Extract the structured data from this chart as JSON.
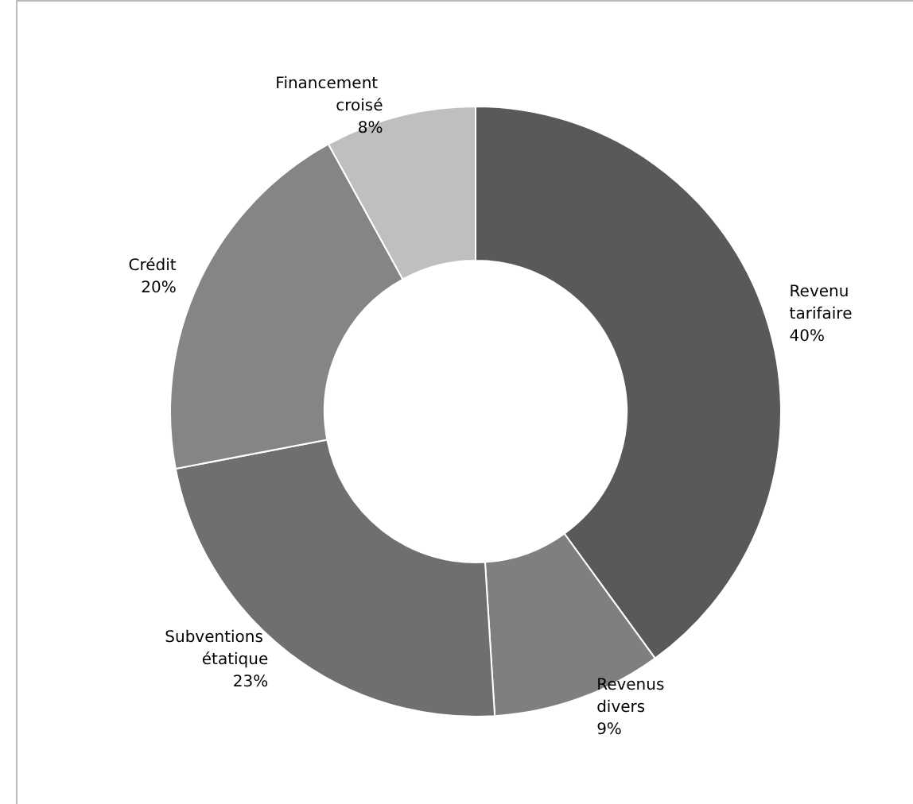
{
  "chart_data": {
    "type": "donut",
    "categories": [
      "Revenu tarifaire",
      "Revenus divers",
      "Subventions étatique",
      "Crédit",
      "Financement croisé"
    ],
    "values": [
      40,
      9,
      23,
      20,
      8
    ],
    "value_labels": [
      "40%",
      "9%",
      "23%",
      "20%",
      "8%"
    ],
    "colors": [
      "#595959",
      "#7f7f7f",
      "#6f6f6f",
      "#858585",
      "#bfbfbf"
    ],
    "legend": false
  }
}
